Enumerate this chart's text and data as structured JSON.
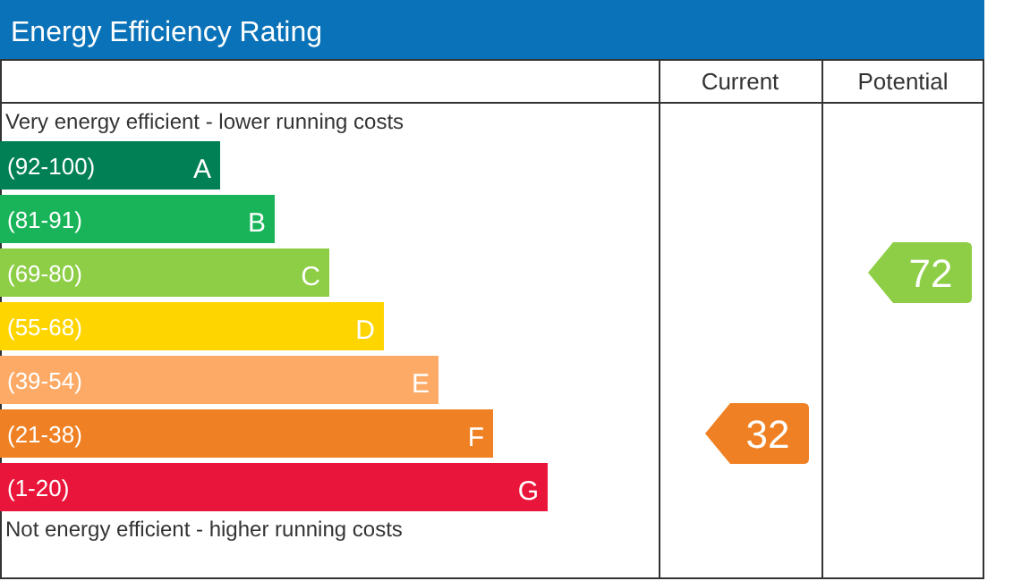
{
  "chart_data": {
    "type": "other",
    "title": "Energy Efficiency Rating",
    "categories": [
      "(92-100)",
      "(81-91)",
      "(69-80)",
      "(55-68)",
      "(39-54)",
      "(21-38)",
      "(1-20)"
    ],
    "colors": [
      "#008054",
      "#19b459",
      "#8dce46",
      "#ffd500",
      "#fcaa65",
      "#ef8023",
      "#e9153b"
    ],
    "data_labels": true,
    "series": [
      {
        "color": "#ef8023",
        "values": [
          null,
          null,
          null,
          null,
          null,
          32,
          null
        ]
      },
      {
        "color": "#8dce46",
        "values": [
          null,
          null,
          72,
          null,
          null,
          null,
          null
        ]
      }
    ],
    "annotations": [
      "Very energy efficient - lower running costs",
      "Not energy efficient - higher running costs",
      "Current",
      "Potential",
      {
        "text": "A",
        "y": "(92-100)"
      },
      {
        "text": "B",
        "y": "(81-91)"
      },
      {
        "text": "C",
        "y": "(69-80)"
      },
      {
        "text": "D",
        "y": "(55-68)"
      },
      {
        "text": "E",
        "y": "(39-54)"
      },
      {
        "text": "F",
        "y": "(21-38)"
      },
      {
        "text": "G",
        "y": "(1-20)"
      }
    ]
  }
}
